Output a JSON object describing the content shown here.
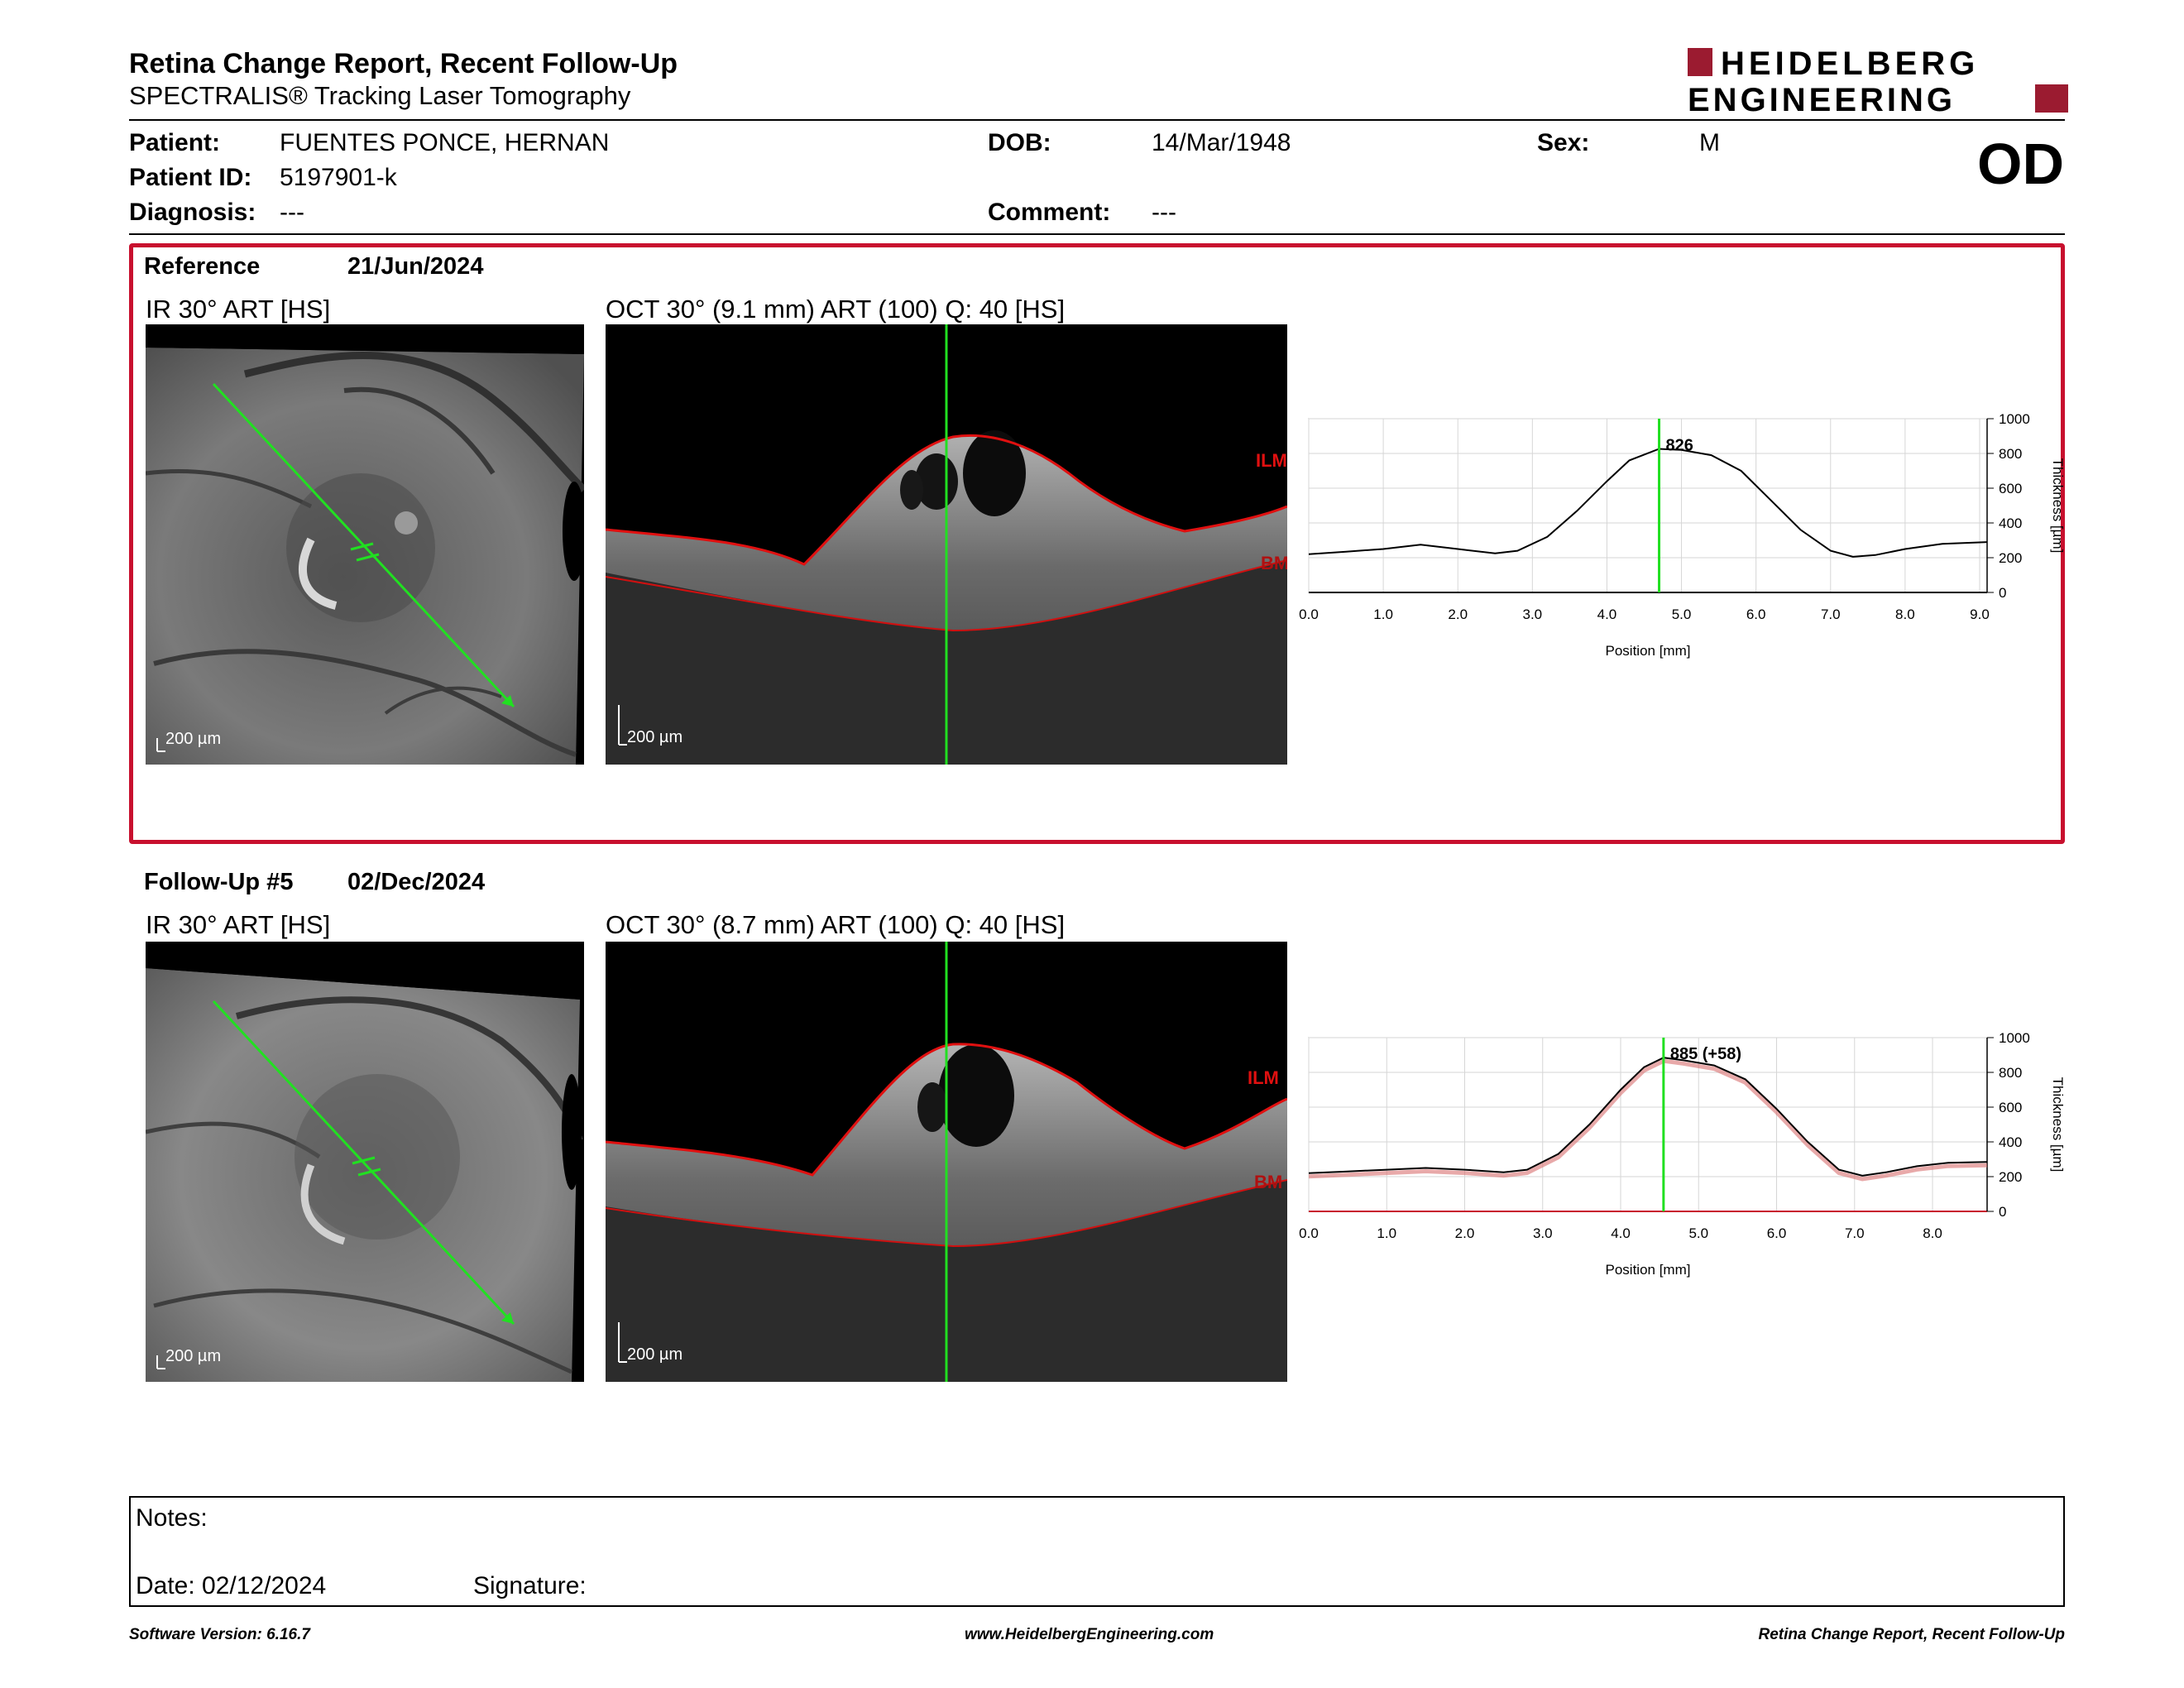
{
  "header": {
    "title": "Retina Change Report, Recent Follow-Up",
    "subtitle": "SPECTRALIS® Tracking Laser Tomography",
    "logo_line1": "HEIDELBERG",
    "logo_line2": "ENGINEERING",
    "brand_color": "#9b1b30"
  },
  "patient": {
    "patient_label": "Patient:",
    "patient_name": "FUENTES PONCE, HERNAN",
    "id_label": "Patient ID:",
    "id_value": "5197901-k",
    "diagnosis_label": "Diagnosis:",
    "diagnosis_value": "---",
    "dob_label": "DOB:",
    "dob_value": "14/Mar/1948",
    "comment_label": "Comment:",
    "comment_value": "---",
    "sex_label": "Sex:",
    "sex_value": "M",
    "eye": "OD"
  },
  "reference": {
    "label": "Reference",
    "date": "21/Jun/2024",
    "ir_label": "IR 30° ART [HS]",
    "oct_label": "OCT 30° (9.1 mm) ART (100) Q: 40 [HS]",
    "ir_scale": "200 µm",
    "oct_scale": "200 µm",
    "ilm_label": "ILM",
    "bm_label": "BM",
    "box_color": "#c8102e"
  },
  "followup": {
    "label": "Follow-Up #5",
    "date": "02/Dec/2024",
    "ir_label": "IR 30° ART [HS]",
    "oct_label": "OCT 30° (8.7 mm) ART (100) Q: 40 [HS]",
    "ir_scale": "200 µm",
    "oct_scale": "200 µm",
    "ilm_label": "ILM",
    "bm_label": "BM"
  },
  "chart_data": [
    {
      "type": "line",
      "title": "",
      "xlabel": "Position [mm]",
      "ylabel": "Thickness [µm]",
      "xlim": [
        0,
        9.1
      ],
      "ylim": [
        0,
        1000
      ],
      "x_ticks": [
        "0.0",
        "1.0",
        "2.0",
        "3.0",
        "4.0",
        "5.0",
        "6.0",
        "7.0",
        "8.0",
        "9.0"
      ],
      "y_ticks": [
        "0",
        "200",
        "400",
        "600",
        "800",
        "1000"
      ],
      "grid": true,
      "marker_x": 4.7,
      "marker_label": "826",
      "series": [
        {
          "x": [
            0,
            0.5,
            1.0,
            1.5,
            2.0,
            2.5,
            2.8,
            3.2,
            3.6,
            4.0,
            4.3,
            4.7,
            5.0,
            5.4,
            5.8,
            6.2,
            6.6,
            7.0,
            7.3,
            7.6,
            8.0,
            8.5,
            9.1
          ],
          "values": [
            220,
            235,
            250,
            275,
            250,
            225,
            240,
            320,
            470,
            640,
            760,
            826,
            820,
            790,
            700,
            530,
            360,
            240,
            205,
            215,
            250,
            280,
            290
          ]
        }
      ]
    },
    {
      "type": "line",
      "title": "",
      "xlabel": "Position [mm]",
      "ylabel": "Thickness [µm]",
      "xlim": [
        0,
        8.7
      ],
      "ylim": [
        0,
        1000
      ],
      "x_ticks": [
        "0.0",
        "1.0",
        "2.0",
        "3.0",
        "4.0",
        "5.0",
        "6.0",
        "7.0",
        "8.0"
      ],
      "y_ticks": [
        "0",
        "200",
        "400",
        "600",
        "800",
        "1000"
      ],
      "grid": true,
      "marker_x": 4.55,
      "marker_label": "885 (+58)",
      "series": [
        {
          "x": [
            0,
            0.5,
            1.0,
            1.5,
            2.0,
            2.5,
            2.8,
            3.2,
            3.6,
            4.0,
            4.3,
            4.55,
            4.8,
            5.2,
            5.6,
            6.0,
            6.4,
            6.8,
            7.1,
            7.4,
            7.8,
            8.2,
            8.7
          ],
          "values": [
            220,
            230,
            240,
            250,
            240,
            225,
            240,
            330,
            500,
            700,
            830,
            885,
            870,
            840,
            760,
            590,
            400,
            240,
            205,
            225,
            260,
            280,
            285
          ]
        }
      ]
    }
  ],
  "notes": {
    "notes_label": "Notes:",
    "date_label": "Date: 02/12/2024",
    "signature_label": "Signature:"
  },
  "footer": {
    "left": "Software Version: 6.16.7",
    "center": "www.HeidelbergEngineering.com",
    "right": "Retina Change Report, Recent Follow-Up"
  }
}
